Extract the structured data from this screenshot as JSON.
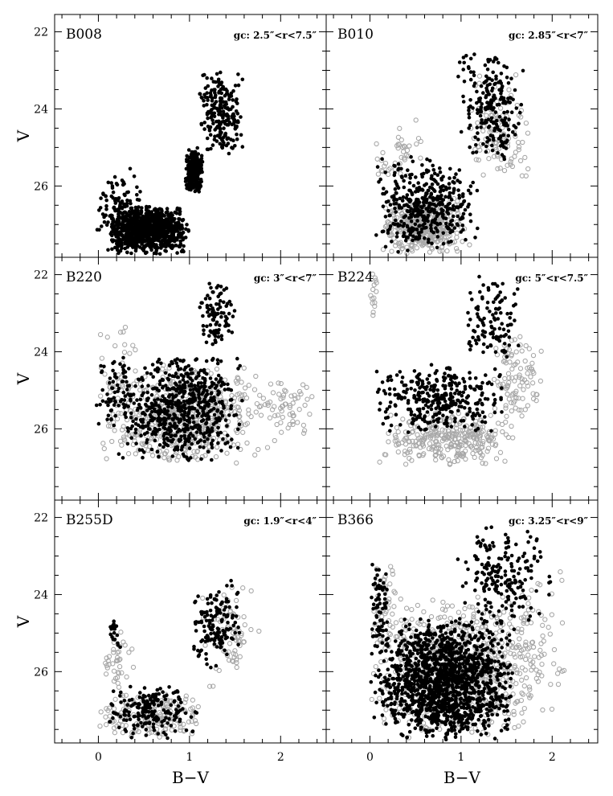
{
  "chart_data": {
    "type": "scatter",
    "layout": "3 rows x 2 columns, shared axes",
    "xlabel": "B−V",
    "ylabel": "V",
    "xlim": [
      -0.48,
      2.5
    ],
    "ylim": [
      27.85,
      21.55
    ],
    "y_inverted": true,
    "x_ticks": [
      "0",
      "1",
      "2"
    ],
    "y_ticks": [
      "22",
      "24",
      "26"
    ],
    "colors": {
      "black_points": "#000000",
      "grey_rings": "#a8a8a8"
    },
    "panels": [
      {
        "id": "B008",
        "label": "B008",
        "annotation": "gc: 2.5″<r<7.5″",
        "x_tick_labels_shown": false,
        "series": [
          {
            "marker": "filled-black",
            "clusters": [
              {
                "n": 900,
                "x": [
                  0.1,
                  1.0
                ],
                "y": [
                  26.5,
                  27.8
                ]
              },
              {
                "n": 300,
                "x": [
                  0.95,
                  1.15
                ],
                "y": [
                  25.0,
                  26.2
                ]
              },
              {
                "n": 220,
                "x": [
                  1.1,
                  1.6
                ],
                "y": [
                  23.0,
                  25.2
                ]
              },
              {
                "n": 140,
                "x": [
                  -0.05,
                  0.5
                ],
                "y": [
                  25.5,
                  27.8
                ]
              }
            ]
          }
        ]
      },
      {
        "id": "B010",
        "label": "B010",
        "annotation": "gc: 2.85″<r<7″",
        "x_tick_labels_shown": false,
        "series": [
          {
            "marker": "open-grey",
            "clusters": [
              {
                "n": 380,
                "x": [
                  0.1,
                  1.1
                ],
                "y": [
                  26.3,
                  27.8
                ]
              },
              {
                "n": 110,
                "x": [
                  1.0,
                  1.8
                ],
                "y": [
                  23.1,
                  26.0
                ]
              },
              {
                "n": 40,
                "x": [
                  0.0,
                  0.6
                ],
                "y": [
                  24.2,
                  26.0
                ]
              }
            ]
          },
          {
            "marker": "filled-black",
            "clusters": [
              {
                "n": 420,
                "x": [
                  0.0,
                  1.2
                ],
                "y": [
                  25.2,
                  27.8
                ]
              },
              {
                "n": 230,
                "x": [
                  0.95,
                  1.7
                ],
                "y": [
                  22.5,
                  25.5
                ]
              }
            ]
          }
        ]
      },
      {
        "id": "B220",
        "label": "B220",
        "annotation": "gc: 3″<r<7″",
        "x_tick_labels_shown": false,
        "series": [
          {
            "marker": "open-grey",
            "clusters": [
              {
                "n": 520,
                "x": [
                  0.0,
                  1.9
                ],
                "y": [
                  24.3,
                  27.0
                ]
              },
              {
                "n": 60,
                "x": [
                  1.7,
                  2.4
                ],
                "y": [
                  24.5,
                  26.5
                ]
              },
              {
                "n": 30,
                "x": [
                  -0.05,
                  0.5
                ],
                "y": [
                  22.5,
                  26.5
                ]
              }
            ]
          },
          {
            "marker": "filled-black",
            "clusters": [
              {
                "n": 640,
                "x": [
                  0.2,
                  1.6
                ],
                "y": [
                  24.0,
                  26.9
                ]
              },
              {
                "n": 90,
                "x": [
                  1.1,
                  1.5
                ],
                "y": [
                  22.1,
                  24.0
                ]
              },
              {
                "n": 60,
                "x": [
                  -0.05,
                  0.4
                ],
                "y": [
                  24.0,
                  26.0
                ]
              }
            ]
          }
        ]
      },
      {
        "id": "B224",
        "label": "B224",
        "annotation": "gc: 5″<r<7.5″",
        "x_tick_labels_shown": false,
        "series": [
          {
            "marker": "open-grey",
            "clusters": [
              {
                "n": 300,
                "x": [
                  0.1,
                  1.6
                ],
                "y": [
                  25.5,
                  27.0
                ]
              },
              {
                "n": 100,
                "x": [
                  1.3,
                  1.9
                ],
                "y": [
                  23.5,
                  26.0
                ]
              },
              {
                "n": 15,
                "x": [
                  0.0,
                  0.1
                ],
                "y": [
                  21.9,
                  23.6
                ]
              }
            ]
          },
          {
            "marker": "filled-black",
            "clusters": [
              {
                "n": 340,
                "x": [
                  0.0,
                  1.5
                ],
                "y": [
                  24.3,
                  26.2
                ]
              },
              {
                "n": 110,
                "x": [
                  1.0,
                  1.7
                ],
                "y": [
                  21.9,
                  24.4
                ]
              }
            ]
          }
        ]
      },
      {
        "id": "B255D",
        "label": "B255D",
        "annotation": "gc: 1.9″<r<4″",
        "x_tick_labels_shown": true,
        "series": [
          {
            "marker": "open-grey",
            "clusters": [
              {
                "n": 180,
                "x": [
                  0.0,
                  1.2
                ],
                "y": [
                  26.5,
                  27.8
                ]
              },
              {
                "n": 70,
                "x": [
                  1.1,
                  1.8
                ],
                "y": [
                  23.6,
                  26.5
                ]
              },
              {
                "n": 40,
                "x": [
                  0.0,
                  0.4
                ],
                "y": [
                  24.8,
                  26.5
                ]
              }
            ]
          },
          {
            "marker": "filled-black",
            "clusters": [
              {
                "n": 190,
                "x": [
                  0.1,
                  1.1
                ],
                "y": [
                  26.3,
                  27.8
                ]
              },
              {
                "n": 150,
                "x": [
                  1.0,
                  1.6
                ],
                "y": [
                  23.6,
                  26.0
                ]
              },
              {
                "n": 20,
                "x": [
                  0.1,
                  0.25
                ],
                "y": [
                  24.5,
                  25.5
                ]
              }
            ]
          }
        ]
      },
      {
        "id": "B366",
        "label": "B366",
        "annotation": "gc: 3.25″<r<9″",
        "x_tick_labels_shown": true,
        "series": [
          {
            "marker": "open-grey",
            "clusters": [
              {
                "n": 700,
                "x": [
                  0.0,
                  1.9
                ],
                "y": [
                  24.0,
                  27.8
                ]
              },
              {
                "n": 80,
                "x": [
                  1.4,
                  2.2
                ],
                "y": [
                  23.2,
                  27.5
                ]
              },
              {
                "n": 40,
                "x": [
                  0.0,
                  0.3
                ],
                "y": [
                  22.8,
                  25.5
                ]
              }
            ]
          },
          {
            "marker": "filled-black",
            "clusters": [
              {
                "n": 1500,
                "x": [
                  0.0,
                  1.6
                ],
                "y": [
                  24.6,
                  27.8
                ]
              },
              {
                "n": 200,
                "x": [
                  0.9,
                  2.0
                ],
                "y": [
                  22.2,
                  25.0
                ]
              },
              {
                "n": 60,
                "x": [
                  0.0,
                  0.2
                ],
                "y": [
                  23.0,
                  25.5
                ]
              }
            ]
          }
        ]
      }
    ]
  }
}
